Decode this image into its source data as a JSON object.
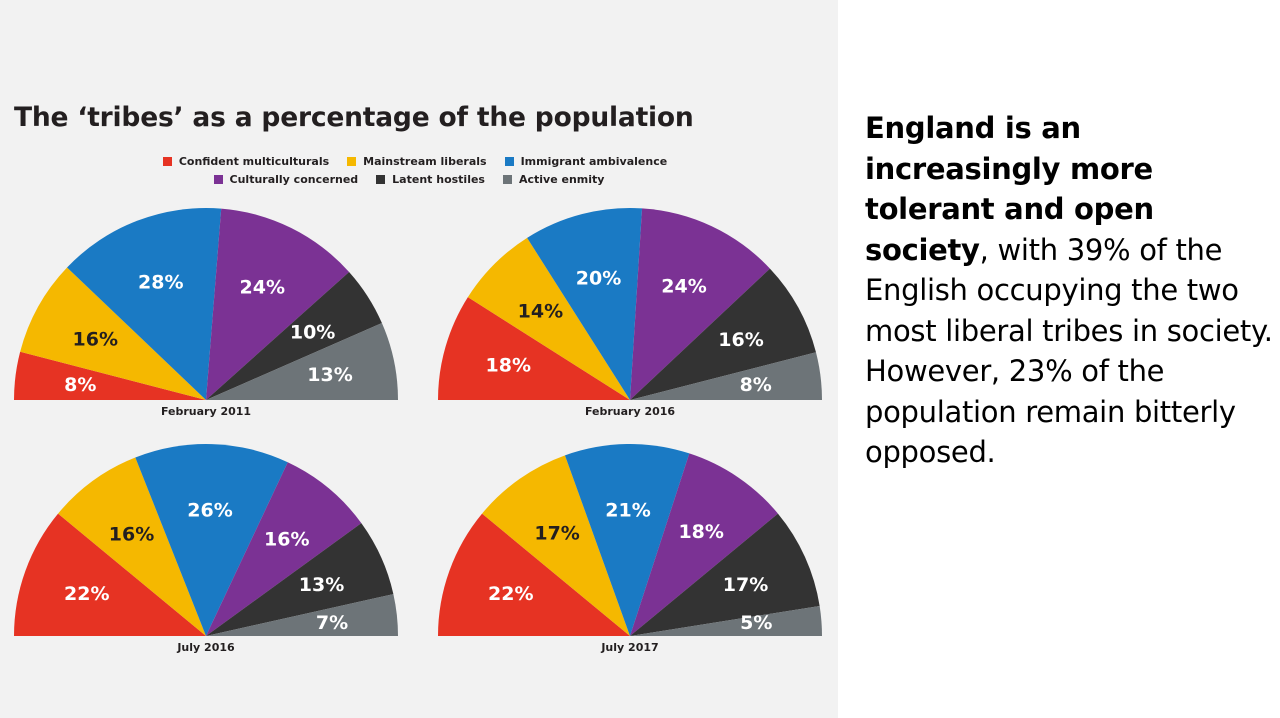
{
  "title": "The ‘tribes’ as a percentage of the population",
  "legend": [
    {
      "label": "Confident multiculturals",
      "color": "#e63323"
    },
    {
      "label": "Mainstream liberals",
      "color": "#f5b800"
    },
    {
      "label": "Immigrant ambivalence",
      "color": "#1a7ac4"
    },
    {
      "label": "Culturally concerned",
      "color": "#7b3294"
    },
    {
      "label": "Latent hostiles",
      "color": "#333333"
    },
    {
      "label": "Active enmity",
      "color": "#6d7478"
    }
  ],
  "chart_data": [
    {
      "type": "pie",
      "subtype": "semicircle",
      "title": "February 2011",
      "categories": [
        "Confident multiculturals",
        "Mainstream liberals",
        "Immigrant ambivalence",
        "Culturally concerned",
        "Latent hostiles",
        "Active enmity"
      ],
      "values": [
        8,
        16,
        28,
        24,
        10,
        13
      ],
      "value_labels": [
        "8%",
        "16%",
        "28%",
        "24%",
        "10%",
        "13%"
      ]
    },
    {
      "type": "pie",
      "subtype": "semicircle",
      "title": "February 2016",
      "categories": [
        "Confident multiculturals",
        "Mainstream liberals",
        "Immigrant ambivalence",
        "Culturally concerned",
        "Latent hostiles",
        "Active enmity"
      ],
      "values": [
        18,
        14,
        20,
        24,
        16,
        8
      ],
      "value_labels": [
        "18%",
        "14%",
        "20%",
        "24%",
        "16%",
        "8%"
      ]
    },
    {
      "type": "pie",
      "subtype": "semicircle",
      "title": "July 2016",
      "categories": [
        "Confident multiculturals",
        "Mainstream liberals",
        "Immigrant ambivalence",
        "Culturally concerned",
        "Latent hostiles",
        "Active enmity"
      ],
      "values": [
        22,
        16,
        26,
        16,
        13,
        7
      ],
      "value_labels": [
        "22%",
        "16%",
        "26%",
        "16%",
        "13%",
        "7%"
      ]
    },
    {
      "type": "pie",
      "subtype": "semicircle",
      "title": "July 2017",
      "categories": [
        "Confident multiculturals",
        "Mainstream liberals",
        "Immigrant ambivalence",
        "Culturally concerned",
        "Latent hostiles",
        "Active enmity"
      ],
      "values": [
        22,
        17,
        21,
        18,
        17,
        5
      ],
      "value_labels": [
        "22%",
        "17%",
        "21%",
        "18%",
        "17%",
        "5%"
      ]
    }
  ],
  "summary": {
    "bold_text": "England is an increasingly more tolerant and open society",
    "rest_text": ", with 39% of the English occupying the two most liberal tribes in society. However, 23% of the population remain bitterly opposed."
  }
}
